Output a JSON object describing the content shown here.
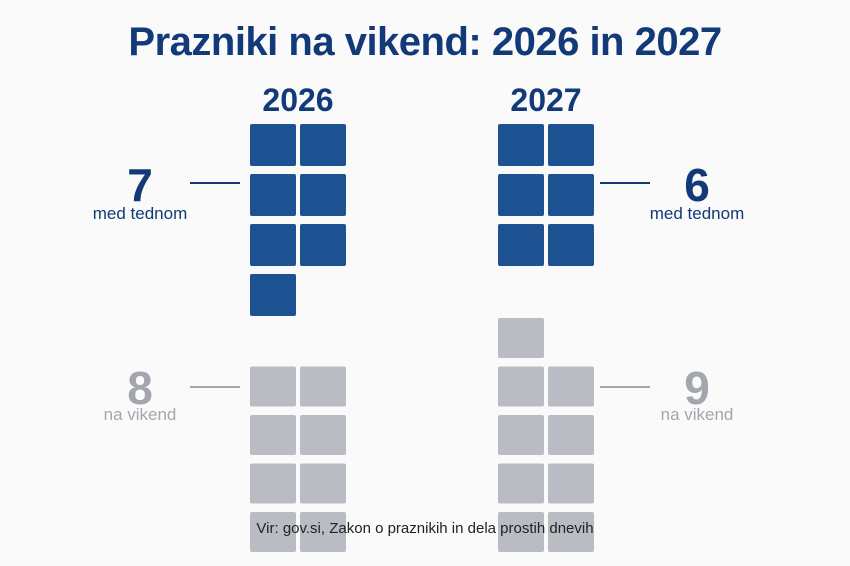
{
  "title": "Prazniki na vikend: 2026 in 2027",
  "source": "Vir: gov.si, Zakon o praznikih in dela prostih dnevih",
  "colors": {
    "weekday": "#1e5191",
    "weekend": "#b9bdc3",
    "accent": "#123a78",
    "muted": "#a3a7ad"
  },
  "chart_data": {
    "type": "waffle",
    "title": "Prazniki na vikend: 2026 in 2027",
    "categories": [
      "med tednom",
      "na vikend"
    ],
    "columns": [
      {
        "year": "2026",
        "weekday": {
          "value": 7,
          "label": "7",
          "sublabel": "med tednom"
        },
        "weekend": {
          "value": 8,
          "label": "8",
          "sublabel": "na vikend"
        }
      },
      {
        "year": "2027",
        "weekday": {
          "value": 6,
          "label": "6",
          "sublabel": "med tednom"
        },
        "weekend": {
          "value": 9,
          "label": "9",
          "sublabel": "na vikend"
        }
      }
    ]
  }
}
